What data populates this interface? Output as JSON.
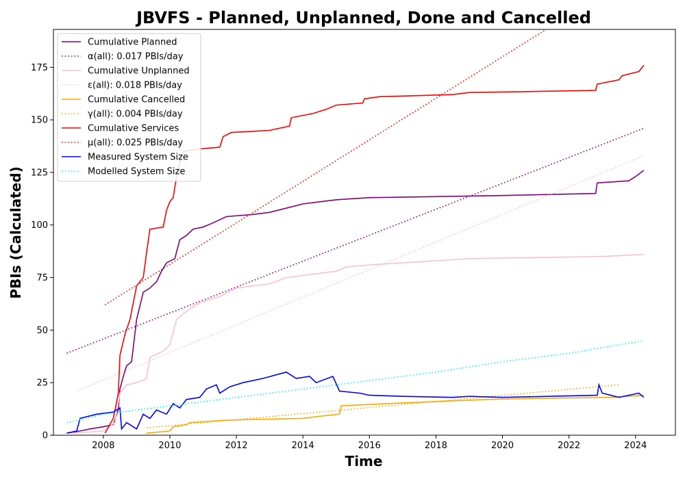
{
  "chart_data": {
    "type": "line",
    "title": "JBVFS - Planned, Unplanned, Done  and Cancelled",
    "xlabel": "Time",
    "ylabel": "PBIs (Calculated)",
    "xlim": [
      2006.5,
      2025.2
    ],
    "ylim": [
      0,
      193
    ],
    "xticks": [
      2008,
      2010,
      2012,
      2014,
      2016,
      2018,
      2020,
      2022,
      2024
    ],
    "yticks": [
      0,
      25,
      50,
      75,
      100,
      125,
      150,
      175
    ],
    "grid": false,
    "legend_position": "upper-left",
    "series": [
      {
        "name": "Cumulative Planned",
        "color": "#800080",
        "style": "solid",
        "points": [
          [
            2006.9,
            1
          ],
          [
            2007.3,
            2
          ],
          [
            2007.6,
            3
          ],
          [
            2008.0,
            4
          ],
          [
            2008.3,
            5
          ],
          [
            2008.45,
            12
          ],
          [
            2008.5,
            22
          ],
          [
            2008.6,
            28
          ],
          [
            2008.7,
            33
          ],
          [
            2008.85,
            35
          ],
          [
            2009.0,
            55
          ],
          [
            2009.2,
            68
          ],
          [
            2009.4,
            70
          ],
          [
            2009.6,
            73
          ],
          [
            2009.75,
            78
          ],
          [
            2009.9,
            82
          ],
          [
            2010.15,
            84
          ],
          [
            2010.3,
            93
          ],
          [
            2010.5,
            95
          ],
          [
            2010.7,
            98
          ],
          [
            2011.0,
            99
          ],
          [
            2011.3,
            101
          ],
          [
            2011.7,
            104
          ],
          [
            2012.5,
            105
          ],
          [
            2013.0,
            106
          ],
          [
            2013.5,
            108
          ],
          [
            2014.0,
            110
          ],
          [
            2014.5,
            111
          ],
          [
            2015.0,
            112
          ],
          [
            2016.0,
            113
          ],
          [
            2018.0,
            113.5
          ],
          [
            2020.0,
            114
          ],
          [
            2022.8,
            115
          ],
          [
            2022.85,
            120
          ],
          [
            2023.8,
            121
          ],
          [
            2024.0,
            123
          ],
          [
            2024.25,
            126
          ]
        ]
      },
      {
        "name": "α(all): 0.017 PBIs/day",
        "color": "#800080",
        "style": "dotted",
        "points": [
          [
            2006.9,
            39
          ],
          [
            2024.25,
            146
          ]
        ]
      },
      {
        "name": "Cumulative Unplanned",
        "color": "#ffc0cb",
        "style": "solid",
        "points": [
          [
            2007.1,
            1
          ],
          [
            2008.0,
            2
          ],
          [
            2008.35,
            6
          ],
          [
            2008.5,
            20
          ],
          [
            2008.7,
            24
          ],
          [
            2009.0,
            25
          ],
          [
            2009.3,
            27
          ],
          [
            2009.4,
            37
          ],
          [
            2009.8,
            40
          ],
          [
            2010.0,
            43
          ],
          [
            2010.2,
            55
          ],
          [
            2010.5,
            59
          ],
          [
            2010.9,
            63
          ],
          [
            2011.5,
            66
          ],
          [
            2012.0,
            70
          ],
          [
            2012.5,
            71
          ],
          [
            2013.0,
            72
          ],
          [
            2013.5,
            75
          ],
          [
            2014.5,
            77
          ],
          [
            2015.0,
            78
          ],
          [
            2015.3,
            80
          ],
          [
            2016.0,
            81
          ],
          [
            2017.0,
            82
          ],
          [
            2018.0,
            83
          ],
          [
            2019.0,
            84
          ],
          [
            2021.0,
            84.5
          ],
          [
            2023.0,
            85
          ],
          [
            2024.25,
            86
          ]
        ]
      },
      {
        "name": "ε(all): 0.018 PBIs/day",
        "color": "#ffc0cb",
        "style": "dotted",
        "points": [
          [
            2007.2,
            21
          ],
          [
            2024.25,
            133
          ]
        ]
      },
      {
        "name": "Cumulative Cancelled",
        "color": "#ffa500",
        "style": "solid",
        "points": [
          [
            2009.3,
            1
          ],
          [
            2010.0,
            2
          ],
          [
            2010.1,
            4
          ],
          [
            2010.5,
            5
          ],
          [
            2010.6,
            6
          ],
          [
            2011.5,
            7
          ],
          [
            2012.5,
            7.5
          ],
          [
            2014.0,
            8
          ],
          [
            2014.5,
            9
          ],
          [
            2015.1,
            10
          ],
          [
            2015.15,
            14
          ],
          [
            2016.5,
            15
          ],
          [
            2018.0,
            16
          ],
          [
            2019.5,
            17
          ],
          [
            2021.0,
            17.5
          ],
          [
            2023.3,
            18
          ],
          [
            2024.25,
            19
          ]
        ]
      },
      {
        "name": "γ(all): 0.004 PBIs/day",
        "color": "#ffa500",
        "style": "dotted",
        "points": [
          [
            2009.3,
            3.5
          ],
          [
            2023.5,
            24
          ]
        ]
      },
      {
        "name": "Cumulative Services",
        "color": "#ff0000",
        "style": "solid",
        "points": [
          [
            2008.05,
            1
          ],
          [
            2008.3,
            8
          ],
          [
            2008.45,
            20
          ],
          [
            2008.5,
            38
          ],
          [
            2008.65,
            48
          ],
          [
            2008.8,
            55
          ],
          [
            2009.0,
            71
          ],
          [
            2009.2,
            75
          ],
          [
            2009.3,
            87
          ],
          [
            2009.4,
            98
          ],
          [
            2009.8,
            99
          ],
          [
            2009.9,
            107
          ],
          [
            2010.0,
            111
          ],
          [
            2010.1,
            113
          ],
          [
            2010.2,
            123
          ],
          [
            2010.3,
            130
          ],
          [
            2010.4,
            135
          ],
          [
            2010.8,
            136
          ],
          [
            2011.5,
            137
          ],
          [
            2011.6,
            142
          ],
          [
            2011.85,
            144
          ],
          [
            2013.0,
            145
          ],
          [
            2013.6,
            147
          ],
          [
            2013.65,
            151
          ],
          [
            2014.3,
            153
          ],
          [
            2014.7,
            155
          ],
          [
            2015.0,
            157
          ],
          [
            2015.8,
            158
          ],
          [
            2015.85,
            160
          ],
          [
            2016.3,
            161
          ],
          [
            2018.5,
            162
          ],
          [
            2019.0,
            163
          ],
          [
            2022.8,
            164
          ],
          [
            2022.85,
            167
          ],
          [
            2023.5,
            169
          ],
          [
            2023.6,
            171
          ],
          [
            2024.1,
            173
          ],
          [
            2024.25,
            176
          ]
        ]
      },
      {
        "name": "μ(all): 0.025 PBIs/day",
        "color": "#ff0000",
        "style": "dotted",
        "points": [
          [
            2008.05,
            62
          ],
          [
            2024.25,
            222
          ]
        ]
      },
      {
        "name": "Measured System Size",
        "color": "#0000ff",
        "style": "solid",
        "points": [
          [
            2006.9,
            1
          ],
          [
            2007.2,
            2
          ],
          [
            2007.3,
            8
          ],
          [
            2007.8,
            10
          ],
          [
            2008.3,
            11
          ],
          [
            2008.5,
            13
          ],
          [
            2008.55,
            3
          ],
          [
            2008.7,
            6
          ],
          [
            2009.0,
            3
          ],
          [
            2009.2,
            10
          ],
          [
            2009.4,
            8
          ],
          [
            2009.6,
            12
          ],
          [
            2009.9,
            10
          ],
          [
            2010.1,
            15
          ],
          [
            2010.3,
            13
          ],
          [
            2010.5,
            17
          ],
          [
            2010.9,
            18
          ],
          [
            2011.1,
            22
          ],
          [
            2011.4,
            24
          ],
          [
            2011.5,
            20
          ],
          [
            2011.8,
            23
          ],
          [
            2012.2,
            25
          ],
          [
            2012.8,
            27
          ],
          [
            2013.5,
            30
          ],
          [
            2013.8,
            27
          ],
          [
            2014.2,
            28
          ],
          [
            2014.4,
            25
          ],
          [
            2014.9,
            28
          ],
          [
            2015.1,
            21
          ],
          [
            2015.7,
            20
          ],
          [
            2016.0,
            19
          ],
          [
            2017.0,
            18.5
          ],
          [
            2018.5,
            18
          ],
          [
            2019.0,
            18.5
          ],
          [
            2020.0,
            18
          ],
          [
            2022.85,
            19
          ],
          [
            2022.9,
            24
          ],
          [
            2023.0,
            20
          ],
          [
            2023.5,
            18
          ],
          [
            2023.8,
            19
          ],
          [
            2024.1,
            20
          ],
          [
            2024.25,
            18
          ]
        ]
      },
      {
        "name": "Modelled System Size",
        "color": "#00ffff",
        "style": "dotted",
        "points": [
          [
            2006.9,
            6
          ],
          [
            2008.0,
            10
          ],
          [
            2010.0,
            14
          ],
          [
            2012.0,
            18
          ],
          [
            2014.0,
            22
          ],
          [
            2016.0,
            26
          ],
          [
            2018.0,
            30
          ],
          [
            2020.0,
            35
          ],
          [
            2022.0,
            39
          ],
          [
            2024.25,
            45
          ]
        ]
      }
    ]
  }
}
